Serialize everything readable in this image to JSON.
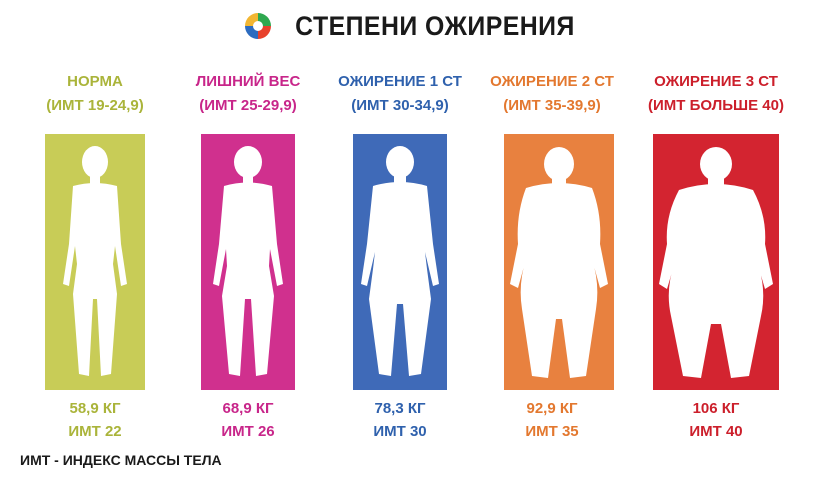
{
  "header": {
    "logo": "swirl-logo-icon",
    "title": "СТЕПЕНИ ОЖИРЕНИЯ"
  },
  "categories": [
    {
      "label": "НОРМА",
      "bmi_range": "(ИМТ 19-24,9)",
      "weight": "58,9 КГ",
      "bmi": "ИМТ 22",
      "color": "#c8cc57",
      "text_color": "#aab43a"
    },
    {
      "label": "ЛИШНИЙ ВЕС",
      "bmi_range": "(ИМТ 25-29,9)",
      "weight": "68,9 КГ",
      "bmi": "ИМТ 26",
      "color": "#d0308e",
      "text_color": "#c8268a"
    },
    {
      "label": "ОЖИРЕНИЕ 1 СТ",
      "bmi_range": "(ИМТ 30-34,9)",
      "weight": "78,3 КГ",
      "bmi": "ИМТ 30",
      "color": "#3f6ab8",
      "text_color": "#2f61ad"
    },
    {
      "label": "ОЖИРЕНИЕ 2 СТ",
      "bmi_range": "(ИМТ 35-39,9)",
      "weight": "92,9 КГ",
      "bmi": "ИМТ 35",
      "color": "#e8813f",
      "text_color": "#e3782f"
    },
    {
      "label": "ОЖИРЕНИЕ 3 СТ",
      "bmi_range": "(ИМТ БОЛЬШЕ 40)",
      "weight": "106 КГ",
      "bmi": "ИМТ 40",
      "color": "#d32430",
      "text_color": "#cc1f2b"
    }
  ],
  "footnote": "ИМТ - ИНДЕКС МАССЫ ТЕЛА"
}
